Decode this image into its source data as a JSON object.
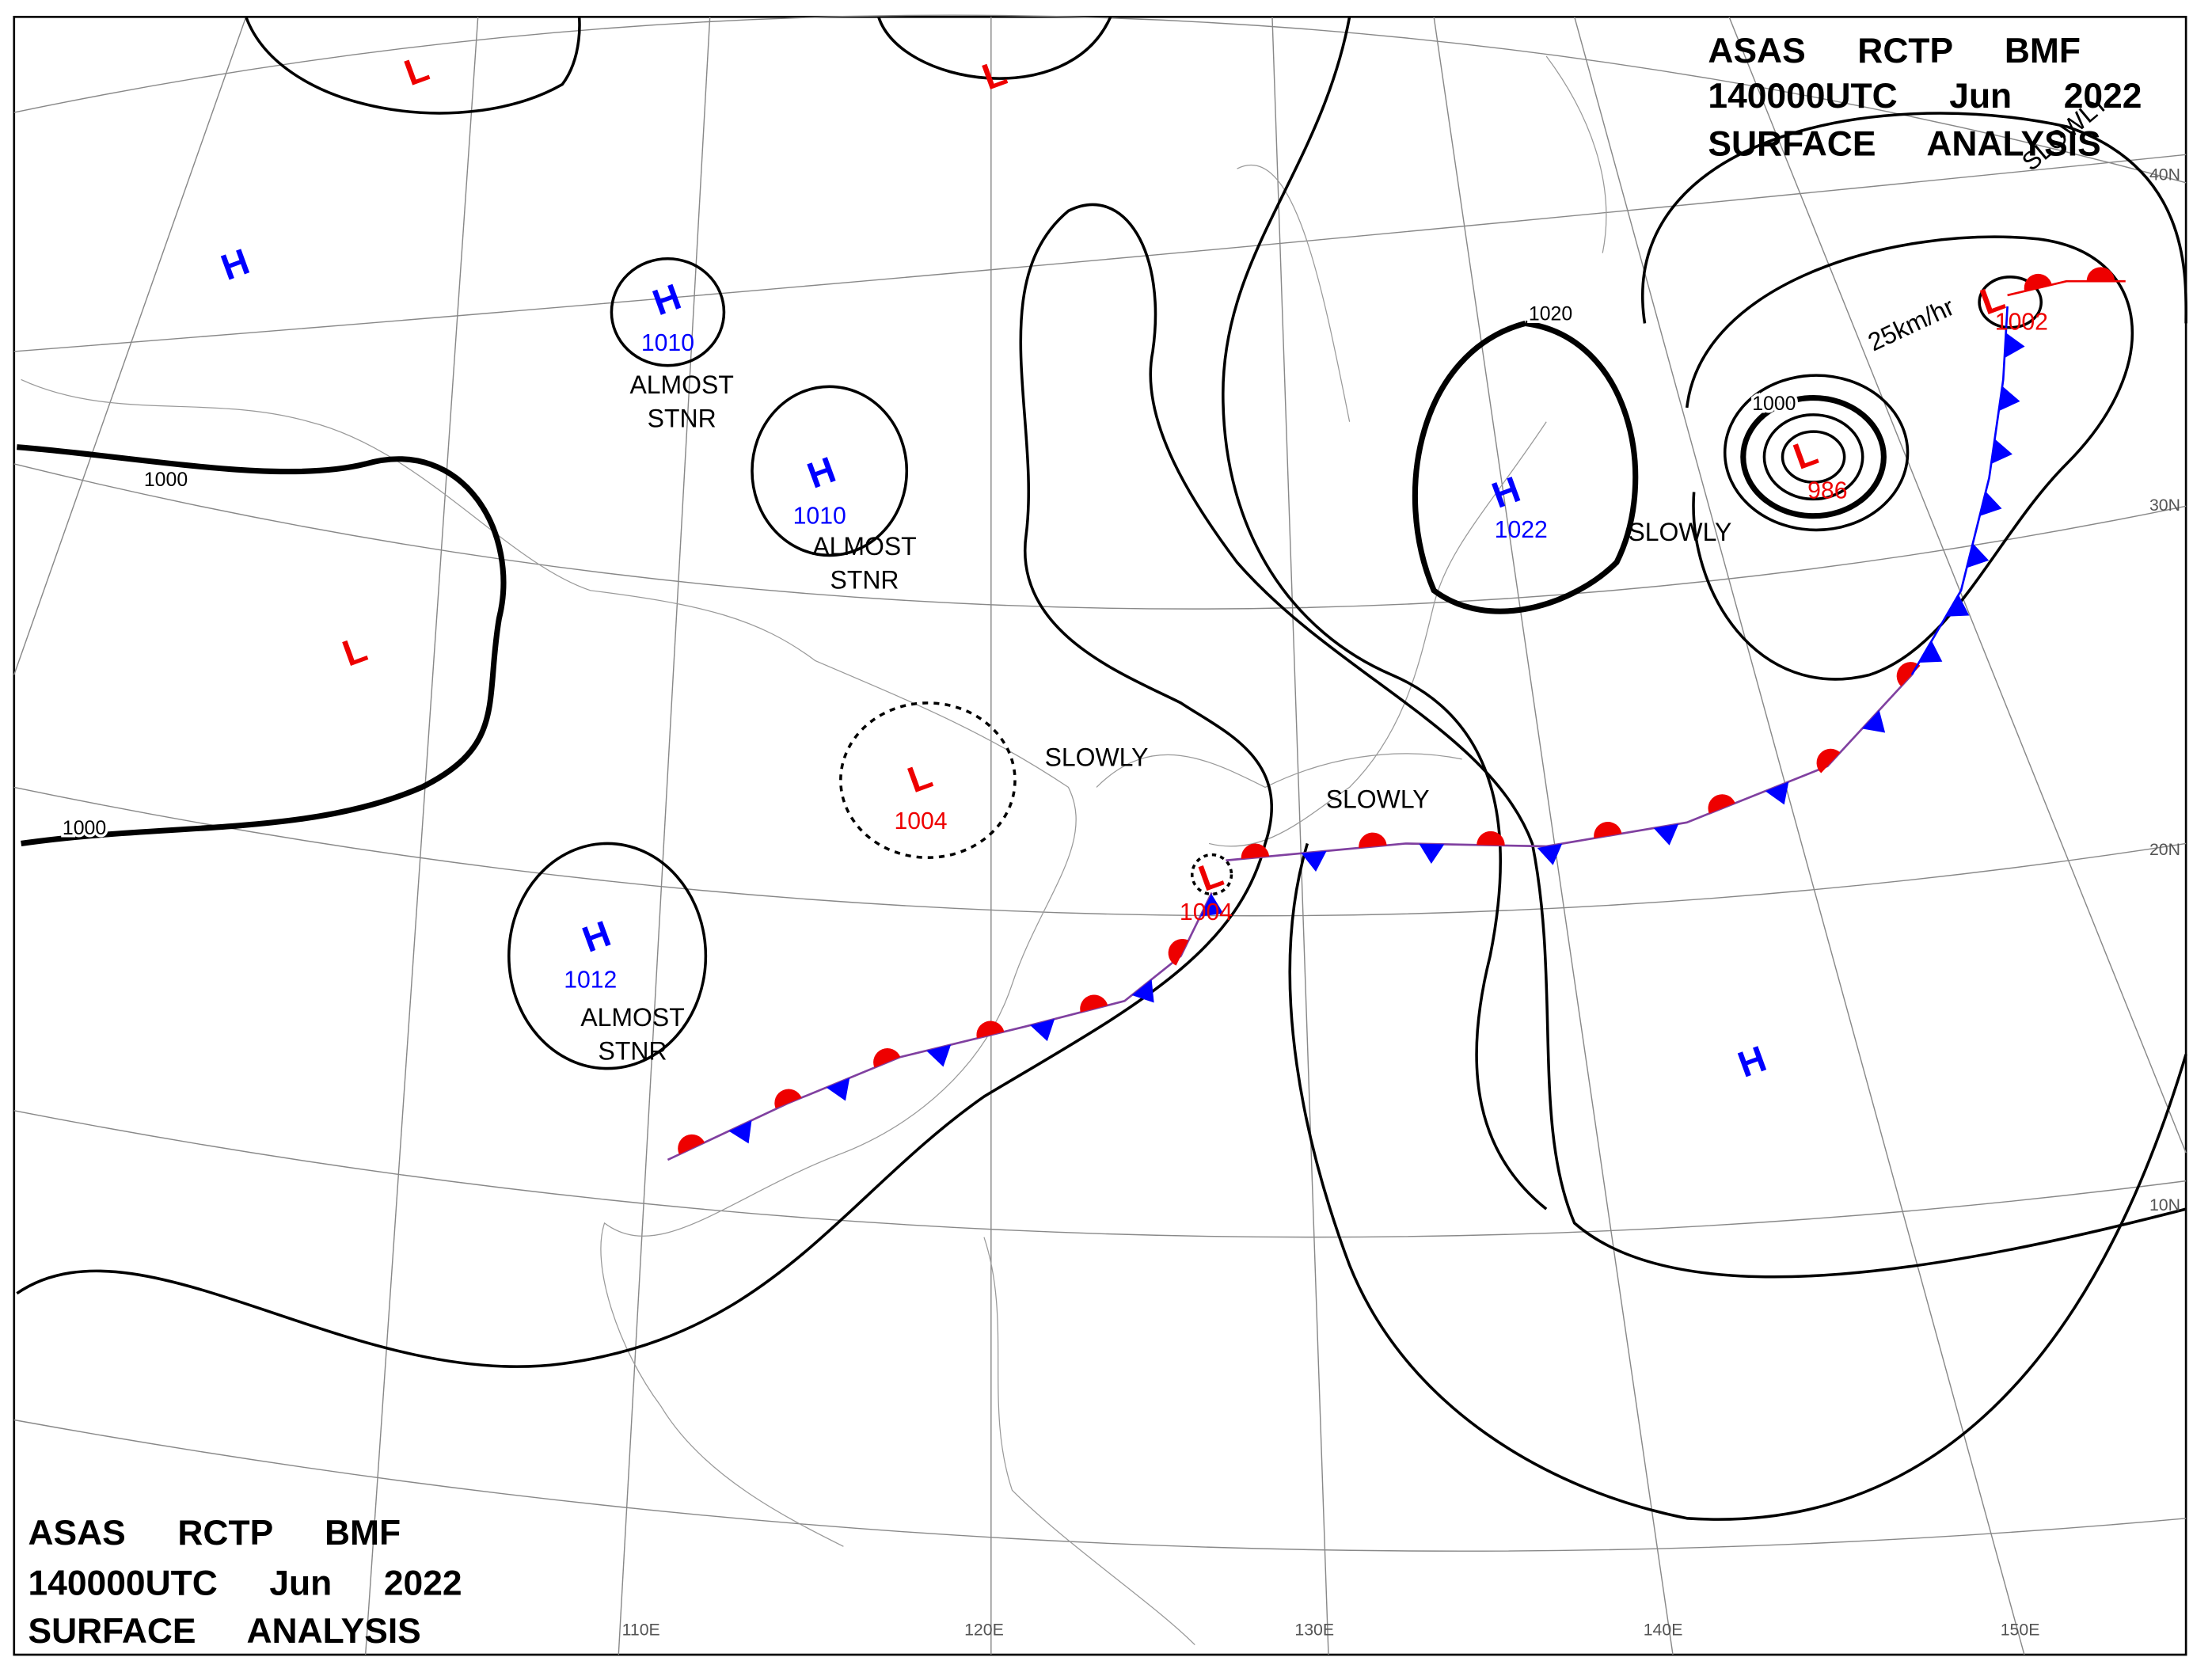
{
  "header_top": {
    "line1": "ASAS RCTP BMF",
    "line2": "140000UTC Jun 2022",
    "line3": "SURFACE ANALYSIS"
  },
  "header_bottom": {
    "line1": "ASAS RCTP BMF",
    "line2": "140000UTC Jun 2022",
    "line3": "SURFACE ANALYSIS"
  },
  "centers": [
    {
      "kind": "L"
    },
    {
      "kind": "L"
    },
    {
      "kind": "H"
    },
    {
      "kind": "H",
      "pressure": 1010,
      "motion": [
        "ALMOST",
        "STNR"
      ]
    },
    {
      "kind": "H",
      "pressure": 1010,
      "motion": [
        "ALMOST",
        "STNR"
      ]
    },
    {
      "kind": "L"
    },
    {
      "kind": "L",
      "pressure": 1004,
      "motion": [
        "SLOWLY"
      ]
    },
    {
      "kind": "H",
      "pressure": 1012,
      "motion": [
        "ALMOST",
        "STNR"
      ]
    },
    {
      "kind": "L",
      "pressure": 1004,
      "motion": [
        "SLOWLY"
      ]
    },
    {
      "kind": "H",
      "pressure": 1022,
      "motion": [
        "SLOWLY"
      ]
    },
    {
      "kind": "L",
      "pressure": 986,
      "motion": [
        "25km/hr"
      ]
    },
    {
      "kind": "L",
      "pressure": 1002,
      "motion": [
        "SLOWLY"
      ]
    },
    {
      "kind": "H"
    }
  ],
  "isobar_labels": [
    1000,
    1000,
    1020,
    1000
  ],
  "latitudes": [
    "40N",
    "30N",
    "20N",
    "10N"
  ],
  "longitudes": [
    "110E",
    "120E",
    "130E",
    "140E",
    "150E"
  ]
}
